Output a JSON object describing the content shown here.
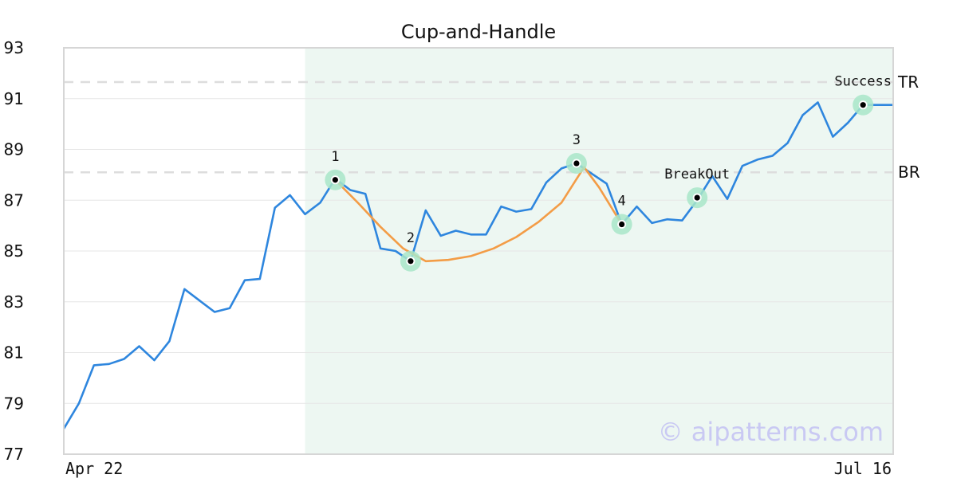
{
  "chart_data": {
    "type": "line",
    "title": "Cup-and-Handle",
    "watermark": "© aipatterns.com",
    "x_labels": [
      "Apr 22",
      "Jul 16"
    ],
    "yticks": [
      77,
      79,
      81,
      83,
      85,
      87,
      89,
      91,
      93
    ],
    "ylim": [
      77,
      93
    ],
    "grid": true,
    "colors": {
      "price": "#2e86de",
      "pattern": "#f39c46",
      "highlight": "#edf7f2",
      "marker_glow": "#a8e6c9",
      "level": "#dddddd"
    },
    "series": [
      {
        "values": [
          78.0,
          79.0,
          80.5,
          80.55,
          80.75,
          81.25,
          80.7,
          81.45,
          83.5,
          83.05,
          82.6,
          82.75,
          83.85,
          83.9,
          86.7,
          87.2,
          86.45,
          86.9,
          87.85,
          87.4,
          87.25,
          85.1,
          85.0,
          84.6,
          86.6,
          85.6,
          85.8,
          85.65,
          85.65,
          86.75,
          86.55,
          86.65,
          87.7,
          88.25,
          88.45,
          88.05,
          87.65,
          86.05,
          86.75,
          86.1,
          86.25,
          86.2,
          87.0,
          87.95,
          87.05,
          88.35,
          88.6,
          88.75,
          89.25,
          90.35,
          90.85,
          89.5,
          90.05,
          90.75,
          90.75,
          90.75
        ]
      }
    ],
    "pattern_curve": [
      [
        18,
        87.8
      ],
      [
        19.5,
        86.9
      ],
      [
        21,
        85.95
      ],
      [
        22.5,
        85.1
      ],
      [
        24,
        84.6
      ],
      [
        25.5,
        84.65
      ],
      [
        27,
        84.8
      ],
      [
        28.5,
        85.1
      ],
      [
        30,
        85.55
      ],
      [
        31.5,
        86.15
      ],
      [
        33,
        86.9
      ],
      [
        34.5,
        88.3
      ],
      [
        35.5,
        87.5
      ],
      [
        37,
        86.05
      ]
    ],
    "highlight_range": [
      16,
      55
    ],
    "levels": [
      {
        "label": "TR",
        "value": 91.65
      },
      {
        "label": "BR",
        "value": 88.1
      }
    ],
    "annotations": [
      {
        "label": "1",
        "x": 18,
        "y": 87.8,
        "pos": "above"
      },
      {
        "label": "2",
        "x": 23,
        "y": 84.6,
        "pos": "above"
      },
      {
        "label": "3",
        "x": 34,
        "y": 88.45,
        "pos": "above"
      },
      {
        "label": "4",
        "x": 37,
        "y": 86.05,
        "pos": "above"
      },
      {
        "label": "BreakOut",
        "x": 42,
        "y": 87.1,
        "pos": "above"
      },
      {
        "label": "Success",
        "x": 53,
        "y": 90.75,
        "pos": "above"
      }
    ]
  }
}
